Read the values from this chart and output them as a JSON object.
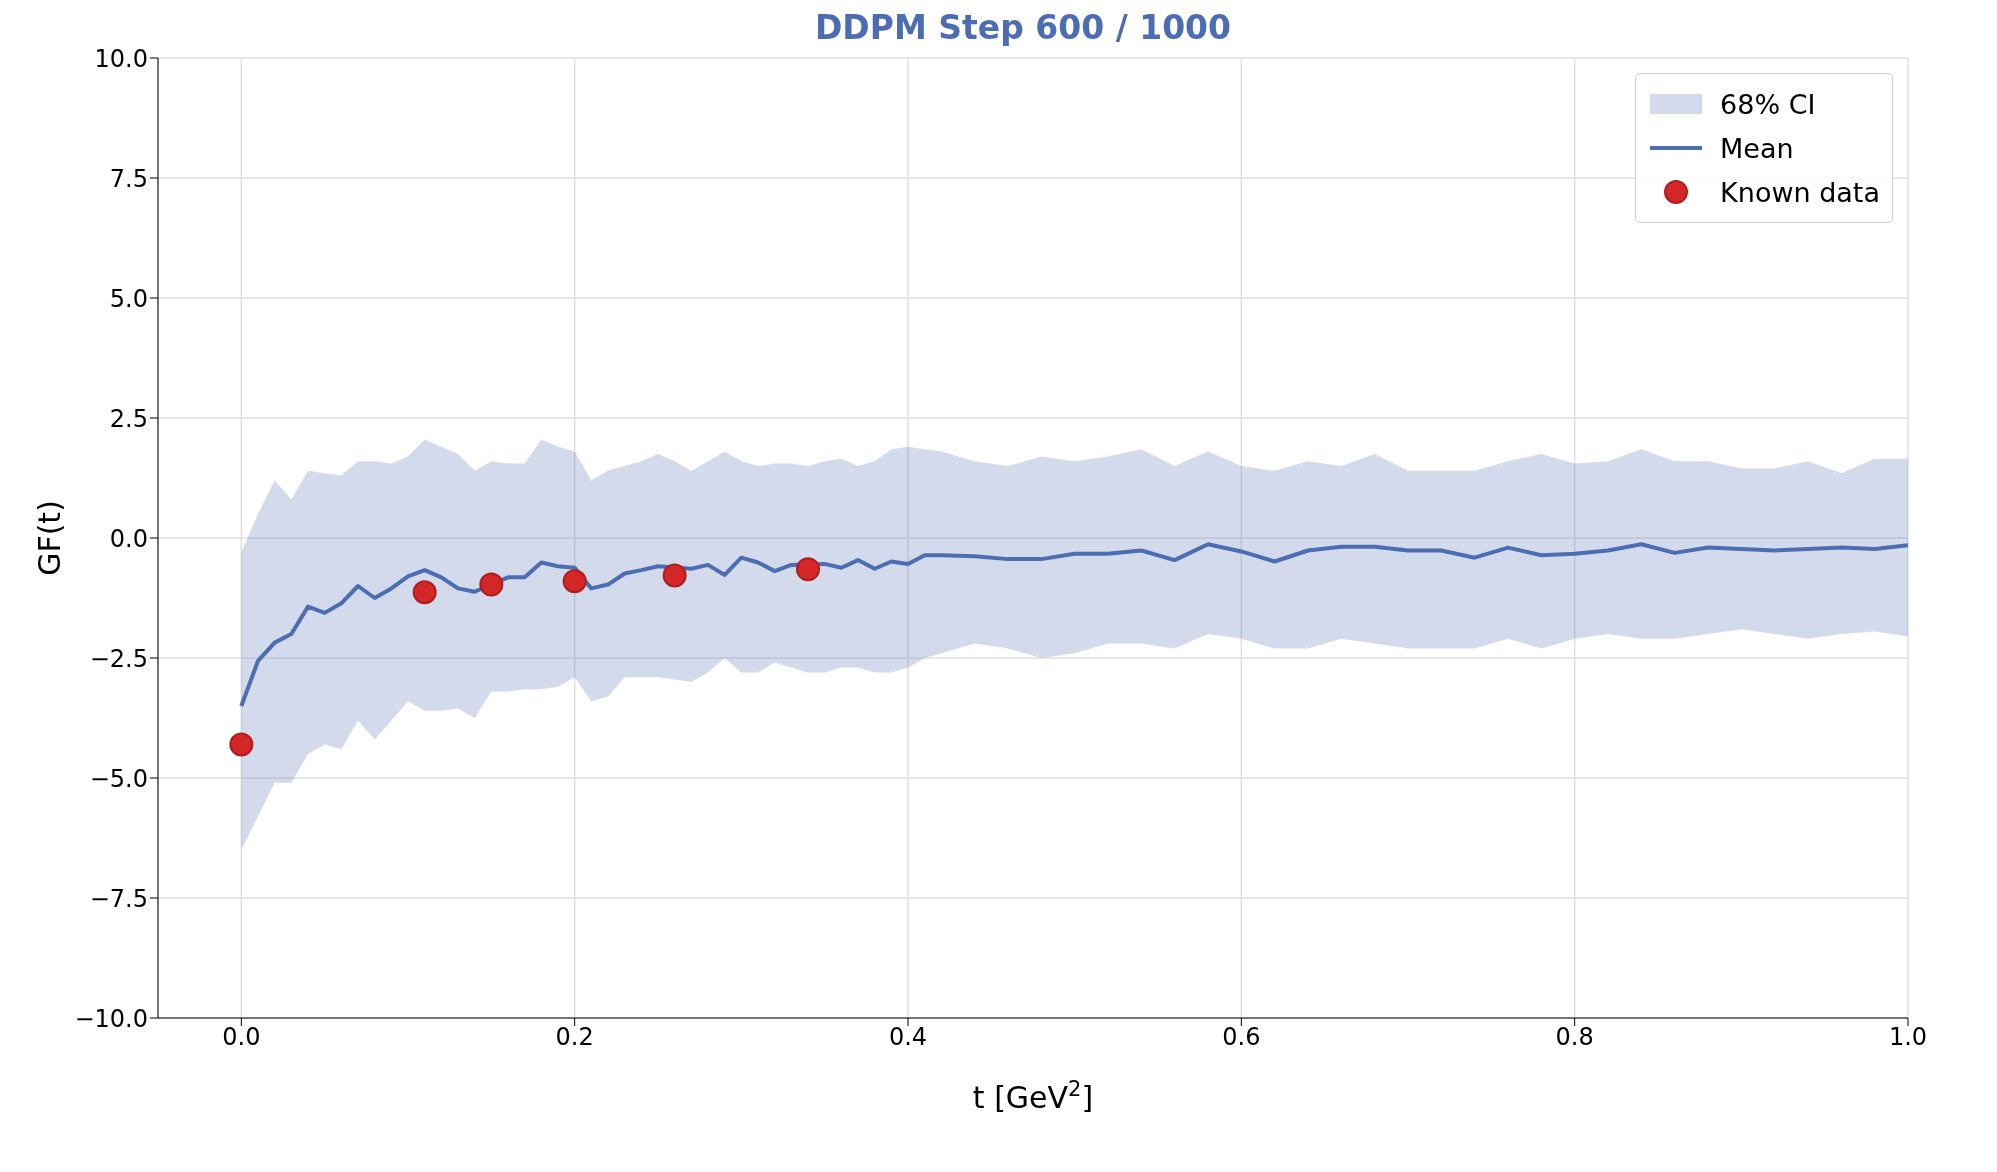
{
  "chart_data": {
    "type": "line",
    "title": "DDPM Step 600 / 1000",
    "xlabel": "t [GeV$^{2}$]",
    "ylabel": "GF(t)",
    "annotations": [
      "68% CI"
    ],
    "xlim": [
      -0.05,
      1.0
    ],
    "xticks": [
      {
        "value": 0,
        "label": "0.0"
      },
      {
        "value": 0.2,
        "label": "0.2"
      },
      {
        "value": 0.4,
        "label": "0.4"
      },
      {
        "value": 0.6,
        "label": "0.6"
      },
      {
        "value": 0.8,
        "label": "0.8"
      },
      {
        "value": 1.0,
        "label": "1.0"
      }
    ],
    "ylim": [
      -10,
      10
    ],
    "yticks": [
      {
        "value": -10,
        "label": "−10.0"
      },
      {
        "value": -7.5,
        "label": "−7.5"
      },
      {
        "value": -5,
        "label": "−5.0"
      },
      {
        "value": -2.5,
        "label": "−2.5"
      },
      {
        "value": 0,
        "label": "0.0"
      },
      {
        "value": 2.5,
        "label": "2.5"
      },
      {
        "value": 5,
        "label": "5.0"
      },
      {
        "value": 7.5,
        "label": "7.5"
      },
      {
        "value": 10,
        "label": "10.0"
      }
    ],
    "grid": true,
    "legend": "top right",
    "x": [
      0,
      0.01,
      0.02,
      0.03,
      0.04,
      0.05,
      0.06,
      0.07,
      0.08,
      0.09,
      0.1,
      0.11,
      0.12,
      0.13,
      0.14,
      0.15,
      0.16,
      0.17,
      0.18,
      0.19,
      0.2,
      0.21,
      0.22,
      0.23,
      0.24,
      0.25,
      0.26,
      0.27,
      0.28,
      0.29,
      0.3,
      0.31,
      0.32,
      0.33,
      0.34,
      0.35,
      0.36,
      0.37,
      0.38,
      0.39,
      0.4,
      0.41,
      0.42,
      0.44,
      0.46,
      0.48,
      0.5,
      0.52,
      0.54,
      0.56,
      0.58,
      0.6,
      0.62,
      0.64,
      0.66,
      0.68,
      0.7,
      0.72,
      0.74,
      0.76,
      0.78,
      0.8,
      0.82,
      0.84,
      0.86,
      0.88,
      0.9,
      0.92,
      0.94,
      0.96,
      0.98,
      1.0
    ],
    "series": [
      {
        "name": "Mean",
        "color": "#4c6db2",
        "values": [
          -3.5,
          -2.56,
          -2.18,
          -2.0,
          -1.43,
          -1.56,
          -1.36,
          -1.0,
          -1.25,
          -1.05,
          -0.8,
          -0.67,
          -0.82,
          -1.05,
          -1.12,
          null,
          -0.82,
          -0.82,
          -0.51,
          -0.59,
          -0.62,
          -1.05,
          -0.97,
          -0.74,
          -0.67,
          -0.59,
          null,
          -0.64,
          -0.56,
          -0.77,
          -0.41,
          -0.51,
          -0.69,
          -0.56,
          null,
          -0.54,
          -0.62,
          -0.46,
          -0.64,
          -0.49,
          -0.54,
          -0.36,
          -0.36,
          -0.38,
          -0.44,
          -0.44,
          -0.33,
          -0.33,
          -0.26,
          -0.46,
          -0.13,
          -0.28,
          -0.49,
          -0.26,
          -0.18,
          -0.18,
          -0.26,
          -0.26,
          -0.41,
          -0.2,
          -0.36,
          -0.33,
          -0.26,
          -0.13,
          -0.31,
          -0.2,
          -0.23,
          -0.26,
          -0.23,
          -0.2,
          -0.23,
          -0.15
        ],
        "lower": [
          -6.5,
          -5.8,
          -5.1,
          -5.1,
          -4.5,
          -4.3,
          -4.4,
          -3.8,
          -4.2,
          -3.8,
          -3.4,
          -3.6,
          -3.6,
          -3.55,
          -3.75,
          -3.2,
          -3.2,
          -3.15,
          -3.15,
          -3.1,
          -2.9,
          -3.4,
          -3.3,
          -2.9,
          -2.9,
          -2.9,
          -2.95,
          -3.0,
          -2.8,
          -2.5,
          -2.8,
          -2.8,
          -2.6,
          -2.7,
          -2.8,
          -2.8,
          -2.7,
          -2.7,
          -2.8,
          -2.8,
          -2.7,
          -2.5,
          -2.4,
          -2.2,
          -2.3,
          -2.5,
          -2.4,
          -2.2,
          -2.2,
          -2.3,
          -2.0,
          -2.1,
          -2.3,
          -2.3,
          -2.1,
          -2.2,
          -2.3,
          -2.3,
          -2.3,
          -2.1,
          -2.3,
          -2.1,
          -2.0,
          -2.1,
          -2.1,
          -2.0,
          -1.9,
          -2.0,
          -2.1,
          -2.0,
          -1.95,
          -2.05
        ],
        "upper": [
          -0.3,
          0.5,
          1.2,
          0.8,
          1.4,
          1.35,
          1.3,
          1.6,
          1.6,
          1.55,
          1.7,
          2.05,
          1.9,
          1.75,
          1.4,
          1.6,
          1.55,
          1.55,
          2.05,
          1.9,
          1.8,
          1.2,
          1.4,
          1.5,
          1.6,
          1.75,
          1.6,
          1.4,
          1.6,
          1.8,
          1.6,
          1.5,
          1.55,
          1.55,
          1.5,
          1.6,
          1.65,
          1.5,
          1.6,
          1.85,
          1.9,
          1.85,
          1.8,
          1.6,
          1.5,
          1.7,
          1.6,
          1.7,
          1.85,
          1.5,
          1.8,
          1.5,
          1.4,
          1.6,
          1.5,
          1.75,
          1.4,
          1.4,
          1.4,
          1.6,
          1.75,
          1.55,
          1.6,
          1.85,
          1.6,
          1.6,
          1.45,
          1.45,
          1.6,
          1.35,
          1.65,
          1.65
        ]
      },
      {
        "name": "Known data",
        "type": "scatter",
        "color": "#d62728",
        "x": [
          0,
          0.11,
          0.15,
          0.2,
          0.26,
          0.34
        ],
        "values": [
          -4.3,
          -1.13,
          -0.97,
          -0.9,
          -0.78,
          -0.65
        ]
      }
    ]
  }
}
